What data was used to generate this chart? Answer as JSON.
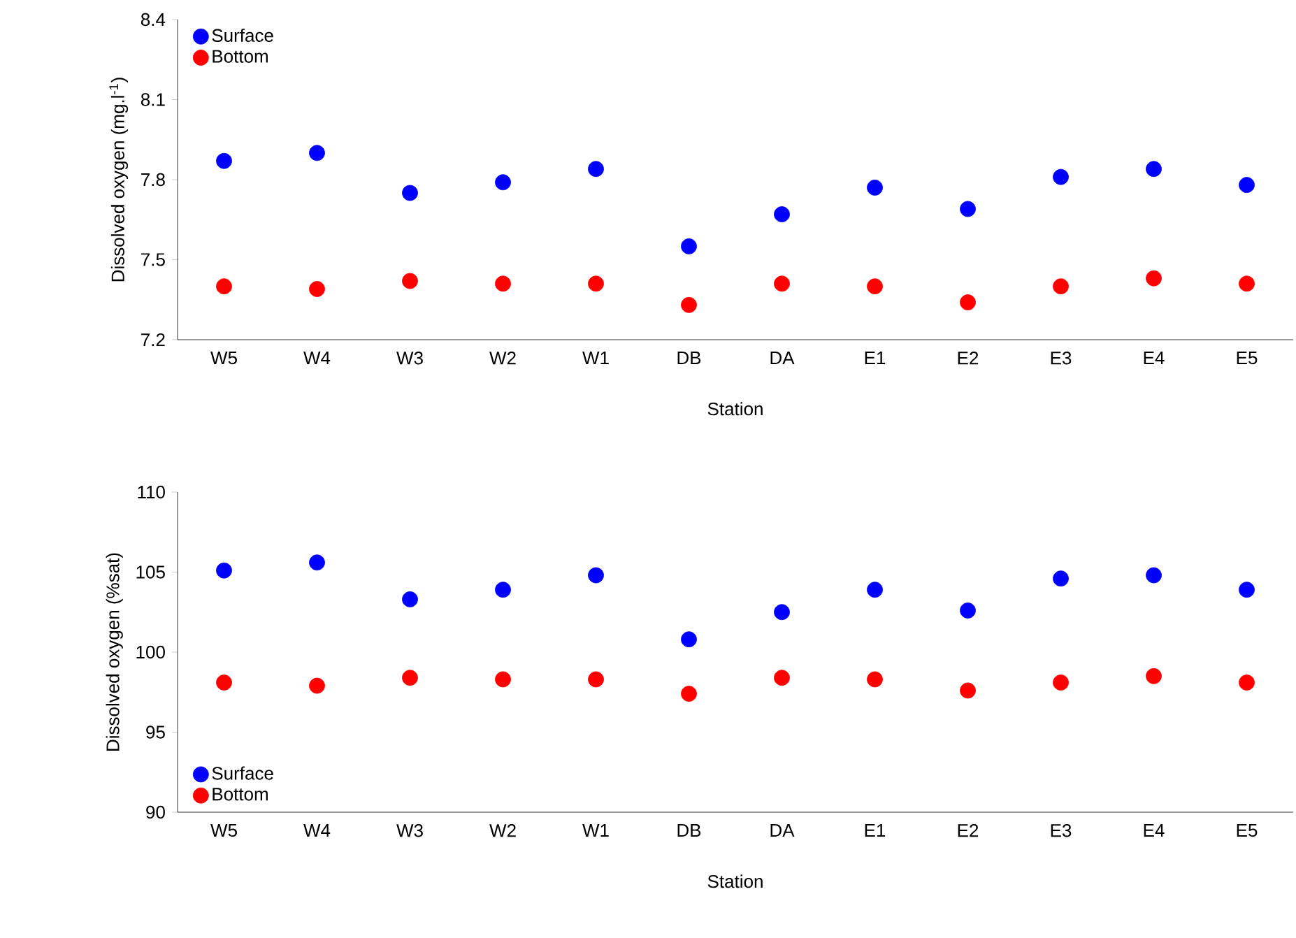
{
  "chart_data": [
    {
      "type": "scatter",
      "xlabel": "Station",
      "ylabel": "Dissolved oxygen (mg.l$^{-1}$)",
      "categories": [
        "W5",
        "W4",
        "W3",
        "W2",
        "W1",
        "DB",
        "DA",
        "E1",
        "E2",
        "E3",
        "E4",
        "E5"
      ],
      "ylim": [
        7.2,
        8.4
      ],
      "yticks": [
        7.2,
        7.5,
        7.8,
        8.1,
        8.4
      ],
      "legend": "top left",
      "marker": "circle",
      "series": [
        {
          "name": "Surface",
          "color": "#0000ff",
          "values": [
            7.87,
            7.9,
            7.75,
            7.79,
            7.84,
            7.55,
            7.67,
            7.77,
            7.69,
            7.81,
            7.84,
            7.78
          ]
        },
        {
          "name": "Bottom",
          "color": "#ff0000",
          "values": [
            7.4,
            7.39,
            7.42,
            7.41,
            7.41,
            7.33,
            7.41,
            7.4,
            7.34,
            7.4,
            7.43,
            7.41
          ]
        }
      ]
    },
    {
      "type": "scatter",
      "xlabel": "Station",
      "ylabel": "Dissolved oxygen (%sat)",
      "categories": [
        "W5",
        "W4",
        "W3",
        "W2",
        "W1",
        "DB",
        "DA",
        "E1",
        "E2",
        "E3",
        "E4",
        "E5"
      ],
      "ylim": [
        90,
        110
      ],
      "yticks": [
        90,
        95,
        100,
        105,
        110
      ],
      "legend": "bottom left",
      "marker": "circle",
      "series": [
        {
          "name": "Surface",
          "color": "#0000ff",
          "values": [
            105.1,
            105.6,
            103.3,
            103.9,
            104.8,
            100.8,
            102.5,
            103.9,
            102.6,
            104.6,
            104.8,
            103.9
          ]
        },
        {
          "name": "Bottom",
          "color": "#ff0000",
          "values": [
            98.1,
            97.9,
            98.4,
            98.3,
            98.3,
            97.4,
            98.4,
            98.3,
            97.6,
            98.1,
            98.5,
            98.1
          ]
        }
      ]
    }
  ]
}
